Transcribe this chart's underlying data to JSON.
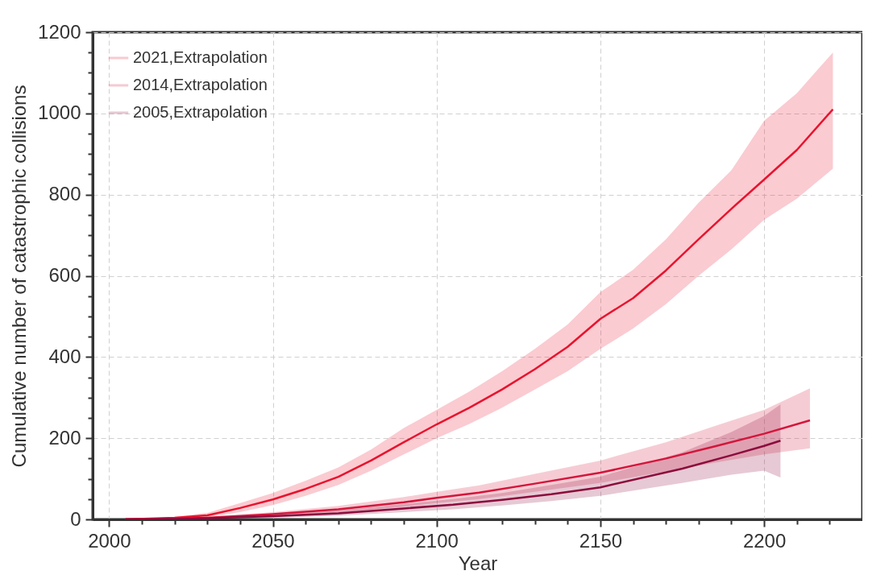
{
  "chart_data": {
    "type": "line",
    "xlabel": "Year",
    "ylabel": "Cumulative number of catastrophic collisions",
    "xlim": [
      1995,
      2230
    ],
    "ylim": [
      0,
      1200
    ],
    "xticks": [
      2000,
      {
        "value": 2010,
        "label": null
      },
      {
        "value": 2020,
        "label": null
      },
      {
        "value": 2030,
        "label": null
      },
      {
        "value": 2040,
        "label": null
      },
      2050,
      {
        "value": 2060,
        "label": null
      },
      {
        "value": 2070,
        "label": null
      },
      {
        "value": 2080,
        "label": null
      },
      {
        "value": 2090,
        "label": null
      },
      2100,
      {
        "value": 2110,
        "label": null
      },
      {
        "value": 2120,
        "label": null
      },
      {
        "value": 2130,
        "label": null
      },
      {
        "value": 2140,
        "label": null
      },
      2150,
      {
        "value": 2160,
        "label": null
      },
      {
        "value": 2170,
        "label": null
      },
      {
        "value": 2180,
        "label": null
      },
      {
        "value": 2190,
        "label": null
      },
      2200,
      {
        "value": 2210,
        "label": null
      },
      {
        "value": 2220,
        "label": null
      }
    ],
    "yticks": [
      0,
      {
        "value": 50,
        "label": null
      },
      {
        "value": 100,
        "label": null
      },
      {
        "value": 150,
        "label": null
      },
      200,
      {
        "value": 250,
        "label": null
      },
      {
        "value": 300,
        "label": null
      },
      {
        "value": 350,
        "label": null
      },
      400,
      {
        "value": 450,
        "label": null
      },
      {
        "value": 500,
        "label": null
      },
      {
        "value": 550,
        "label": null
      },
      600,
      {
        "value": 650,
        "label": null
      },
      {
        "value": 700,
        "label": null
      },
      {
        "value": 750,
        "label": null
      },
      800,
      {
        "value": 850,
        "label": null
      },
      {
        "value": 900,
        "label": null
      },
      {
        "value": 950,
        "label": null
      },
      1000,
      {
        "value": 1050,
        "label": null
      },
      {
        "value": 1100,
        "label": null
      },
      {
        "value": 1150,
        "label": null
      },
      1200
    ],
    "grid": true,
    "legend": "top left",
    "line_style": "solid",
    "series": [
      {
        "name": "2021,Extrapolation",
        "color": "#e8132e",
        "x": [
          2005,
          2020,
          2030,
          2040,
          2050,
          2060,
          2070,
          2080,
          2090,
          2100,
          2110,
          2120,
          2130,
          2140,
          2150,
          2160,
          2170,
          2180,
          2190,
          2200,
          2210,
          2221
        ],
        "values": [
          0,
          4,
          10,
          28,
          49,
          75,
          105,
          145,
          190,
          234,
          275,
          320,
          370,
          425,
          494,
          545,
          613,
          690,
          765,
          837,
          910,
          1010
        ],
        "lower": [
          0,
          2,
          5,
          18,
          35,
          58,
          85,
          120,
          160,
          200,
          235,
          275,
          320,
          365,
          420,
          470,
          530,
          600,
          665,
          738,
          790,
          864
        ],
        "upper": [
          0,
          6,
          16,
          40,
          65,
          95,
          128,
          172,
          225,
          270,
          315,
          365,
          420,
          480,
          560,
          615,
          690,
          780,
          860,
          982,
          1050,
          1150
        ]
      },
      {
        "name": "2014,Extrapolation",
        "color": "#d4153b",
        "x": [
          2005,
          2020,
          2030,
          2050,
          2070,
          2090,
          2100,
          2113,
          2130,
          2150,
          2170,
          2185,
          2200,
          2214
        ],
        "values": [
          0,
          2,
          4,
          13,
          25,
          42,
          53,
          66,
          88,
          115,
          150,
          180,
          211,
          244
        ],
        "lower": [
          0,
          1,
          2,
          8,
          17,
          31,
          40,
          50,
          68,
          90,
          118,
          140,
          160,
          175
        ],
        "upper": [
          0,
          3,
          6,
          18,
          33,
          55,
          68,
          84,
          112,
          145,
          190,
          230,
          270,
          323
        ]
      },
      {
        "name": "2005,Extrapolation",
        "color": "#8c0b3c",
        "x": [
          2005,
          2020,
          2030,
          2050,
          2070,
          2090,
          2105,
          2120,
          2135,
          2150,
          2175,
          2190,
          2200,
          2205
        ],
        "values": [
          0,
          1,
          3,
          8,
          15,
          27,
          36,
          48,
          62,
          79,
          125,
          158,
          181,
          194
        ],
        "lower": [
          0,
          0,
          1,
          4,
          9,
          18,
          25,
          34,
          45,
          58,
          90,
          110,
          120,
          103
        ],
        "upper": [
          0,
          2,
          5,
          13,
          22,
          38,
          50,
          65,
          85,
          105,
          165,
          215,
          255,
          283
        ]
      }
    ]
  }
}
